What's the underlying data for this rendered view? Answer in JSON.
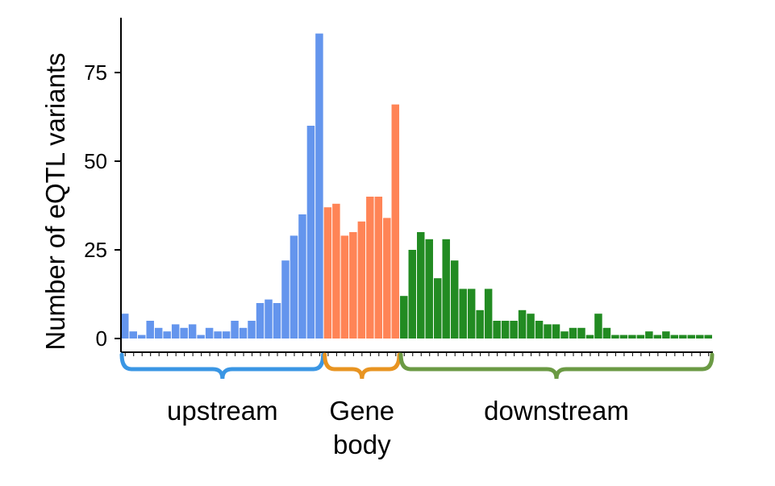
{
  "chart_data": {
    "type": "bar",
    "ylabel": "Number of eQTL variants",
    "ylim": [
      0,
      88
    ],
    "yticks": [
      "0",
      "25",
      "50",
      "75"
    ],
    "grid": false,
    "series": [
      {
        "color": "#6495ED",
        "values": [
          7,
          2,
          1,
          5,
          3,
          2,
          4,
          3,
          4,
          1,
          3,
          2,
          2,
          5,
          3,
          5,
          10,
          11,
          10,
          22,
          29,
          35,
          60,
          86
        ]
      },
      {
        "color": "#FF8456",
        "values": [
          37,
          38,
          29,
          30,
          33,
          40,
          40,
          34,
          66
        ]
      },
      {
        "color": "#228B22",
        "values": [
          12,
          25,
          30,
          28,
          17,
          28,
          22,
          14,
          14,
          8,
          14,
          5,
          5,
          5,
          8,
          7,
          5,
          4,
          4,
          2,
          3,
          3,
          1,
          7,
          3,
          1,
          1,
          1,
          1,
          2,
          1,
          2,
          1,
          1,
          1,
          1,
          1
        ]
      }
    ],
    "regions": [
      {
        "label_lines": [
          "upstream"
        ],
        "color": "#3A96E4"
      },
      {
        "label_lines": [
          "Gene",
          "body"
        ],
        "color": "#E89421"
      },
      {
        "label_lines": [
          "downstream"
        ],
        "color": "#6B9A44"
      }
    ]
  }
}
